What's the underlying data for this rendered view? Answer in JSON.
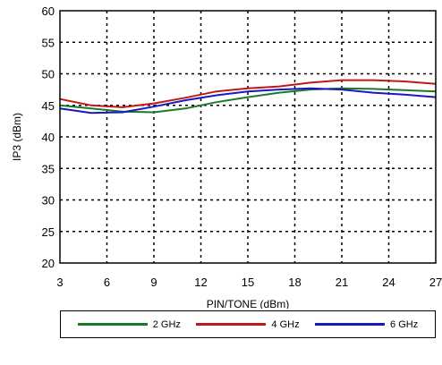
{
  "chart_data": {
    "type": "line",
    "title": "",
    "xlabel": "PIN/TONE (dBm)",
    "ylabel": "IP3 (dBm)",
    "xlim": [
      3,
      27
    ],
    "ylim": [
      20,
      60
    ],
    "xticks": [
      3,
      6,
      9,
      12,
      15,
      18,
      21,
      24,
      27
    ],
    "yticks": [
      20,
      25,
      30,
      35,
      40,
      45,
      50,
      55,
      60
    ],
    "grid": true,
    "legend_position": "bottom",
    "series": [
      {
        "name": "2 GHz",
        "color": "#1a7a2a",
        "x": [
          3,
          5,
          7,
          9,
          11,
          13,
          15,
          17,
          19,
          21,
          23,
          25,
          27
        ],
        "y": [
          45.0,
          44.5,
          44.0,
          43.9,
          44.5,
          45.5,
          46.3,
          47.0,
          47.5,
          47.7,
          47.6,
          47.4,
          47.2
        ]
      },
      {
        "name": "4 GHz",
        "color": "#c01818",
        "x": [
          3,
          5,
          7,
          9,
          11,
          13,
          15,
          17,
          19,
          21,
          23,
          25,
          27
        ],
        "y": [
          46.0,
          45.0,
          44.7,
          45.3,
          46.2,
          47.2,
          47.7,
          48.0,
          48.6,
          49.0,
          49.0,
          48.8,
          48.4
        ]
      },
      {
        "name": "6 GHz",
        "color": "#1818c0",
        "x": [
          3,
          5,
          7,
          9,
          11,
          13,
          15,
          17,
          19,
          21,
          23,
          25,
          27
        ],
        "y": [
          44.5,
          43.8,
          43.9,
          44.8,
          45.8,
          46.6,
          47.2,
          47.5,
          47.7,
          47.5,
          47.0,
          46.7,
          46.3
        ]
      }
    ]
  }
}
